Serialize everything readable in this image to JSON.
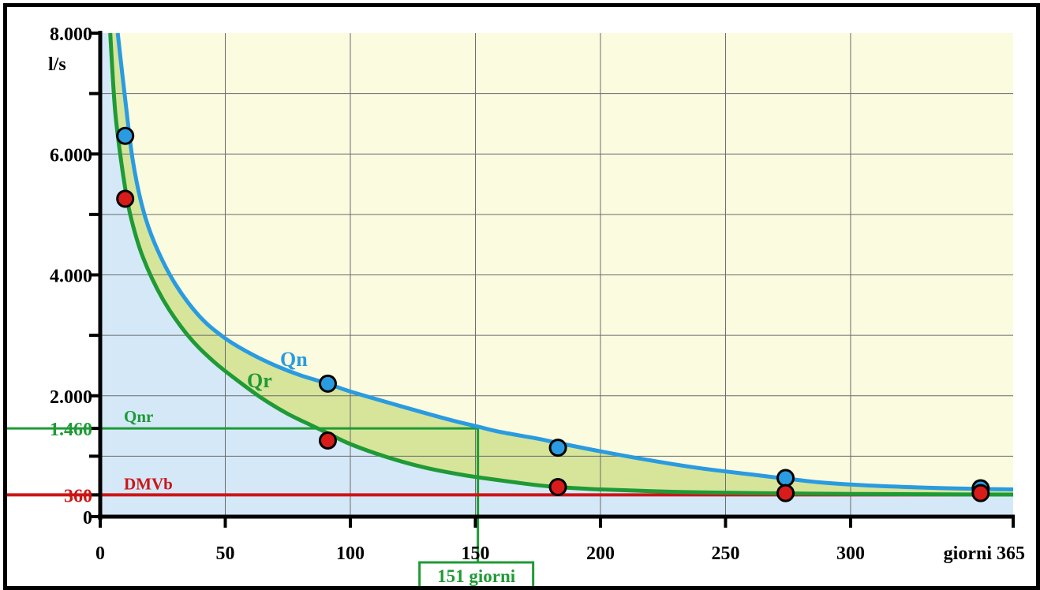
{
  "chart_data": {
    "type": "line",
    "title": "",
    "xlabel": "giorni",
    "ylabel": "l/s",
    "xlim": [
      0,
      365
    ],
    "ylim": [
      0,
      8000
    ],
    "x_ticks": [
      {
        "value": 0,
        "label": "0"
      },
      {
        "value": 50,
        "label": "50"
      },
      {
        "value": 100,
        "label": "100"
      },
      {
        "value": 150,
        "label": "150"
      },
      {
        "value": 200,
        "label": "200"
      },
      {
        "value": 250,
        "label": "250"
      },
      {
        "value": 300,
        "label": "300"
      },
      {
        "value": 365,
        "label": "365"
      }
    ],
    "y_ticks": [
      {
        "value": 0,
        "label": "0"
      },
      {
        "value": 2000,
        "label": "2.000"
      },
      {
        "value": 4000,
        "label": "4.000"
      },
      {
        "value": 6000,
        "label": "6.000"
      },
      {
        "value": 8000,
        "label": "8.000"
      }
    ],
    "y_minor_ticks": [
      1000,
      3000,
      5000,
      7000
    ],
    "grid": true,
    "series": [
      {
        "name": "Qn",
        "color": "#2a9be0",
        "curve": [
          [
            7,
            8000
          ],
          [
            10,
            6900
          ],
          [
            13,
            5900
          ],
          [
            17,
            5100
          ],
          [
            22,
            4500
          ],
          [
            30,
            3850
          ],
          [
            40,
            3300
          ],
          [
            50,
            2950
          ],
          [
            60,
            2700
          ],
          [
            70,
            2500
          ],
          [
            80,
            2340
          ],
          [
            91,
            2200
          ],
          [
            100,
            2070
          ],
          [
            120,
            1830
          ],
          [
            140,
            1600
          ],
          [
            150,
            1500
          ],
          [
            160,
            1400
          ],
          [
            175,
            1290
          ],
          [
            183,
            1220
          ],
          [
            200,
            1080
          ],
          [
            220,
            930
          ],
          [
            240,
            800
          ],
          [
            260,
            700
          ],
          [
            274,
            630
          ],
          [
            290,
            560
          ],
          [
            310,
            510
          ],
          [
            330,
            480
          ],
          [
            350,
            460
          ],
          [
            365,
            450
          ]
        ],
        "points": [
          [
            10,
            6300
          ],
          [
            91,
            2200
          ],
          [
            183,
            1140
          ],
          [
            274,
            640
          ],
          [
            352,
            470
          ]
        ]
      },
      {
        "name": "Qr",
        "color": "#1f9a36",
        "curve": [
          [
            4,
            8000
          ],
          [
            6,
            6700
          ],
          [
            9,
            5700
          ],
          [
            12,
            5000
          ],
          [
            17,
            4300
          ],
          [
            25,
            3600
          ],
          [
            35,
            3000
          ],
          [
            45,
            2580
          ],
          [
            55,
            2250
          ],
          [
            65,
            1950
          ],
          [
            75,
            1700
          ],
          [
            85,
            1500
          ],
          [
            91,
            1380
          ],
          [
            100,
            1200
          ],
          [
            115,
            980
          ],
          [
            130,
            810
          ],
          [
            145,
            690
          ],
          [
            160,
            600
          ],
          [
            175,
            520
          ],
          [
            183,
            490
          ],
          [
            200,
            450
          ],
          [
            230,
            410
          ],
          [
            260,
            390
          ],
          [
            274,
            385
          ],
          [
            300,
            375
          ],
          [
            330,
            370
          ],
          [
            365,
            365
          ]
        ],
        "points": [
          [
            10,
            5260
          ],
          [
            91,
            1260
          ],
          [
            183,
            490
          ],
          [
            274,
            390
          ],
          [
            352,
            390
          ]
        ]
      }
    ],
    "reference_lines": [
      {
        "name": "Qnr",
        "y": 1460,
        "y_label": "1.460",
        "x_end": 151,
        "color": "#1f9a36"
      },
      {
        "name": "DMVb",
        "y": 360,
        "y_label": "360",
        "color": "#cc1515"
      }
    ],
    "annotations": [
      {
        "text": "151 giorni",
        "x": 151,
        "color": "#1f9a36"
      }
    ],
    "colors": {
      "area_below_qr": "#d4e8f8",
      "area_between": "#d6e59a",
      "area_above": "#fbfbe0",
      "point_qr": "#d81b1b"
    }
  }
}
